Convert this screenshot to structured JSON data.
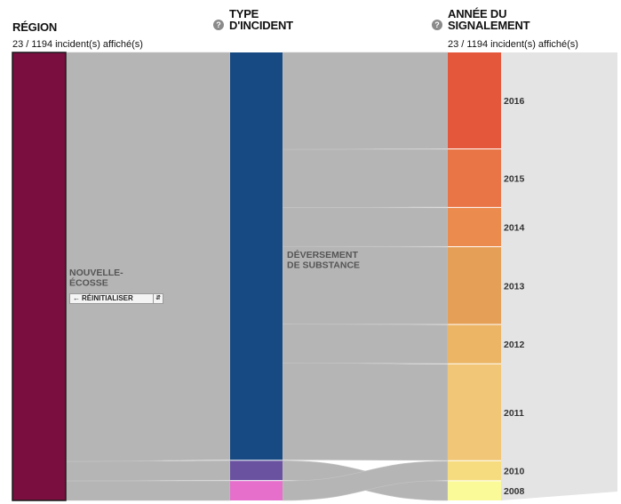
{
  "headers": {
    "region": "RÉGION",
    "type": "TYPE\nD'INCIDENT",
    "year": "ANNÉE DU\nSIGNALEMENT"
  },
  "counts": {
    "left": "23 / 1194 incident(s) affiché(s)",
    "right": "23 / 1194 incident(s) affiché(s)"
  },
  "help_icon": "question-circle-icon",
  "reset": {
    "label": "RÉINITIALISER",
    "arrow_icon": "back-arrow-icon",
    "toggle_icon": "up-down-icon"
  },
  "chart_data": {
    "type": "sankey",
    "total": 23,
    "columns": [
      {
        "key": "region",
        "nodes": [
          {
            "id": "ns",
            "label": "NOUVELLE-\nÉCOSSE",
            "value": 23,
            "color": "#7a0e3e"
          }
        ]
      },
      {
        "key": "type",
        "nodes": [
          {
            "id": "subst",
            "label": "DÉVERSEMENT\nDE SUBSTANCE",
            "value": 21,
            "color": "#174a82"
          },
          {
            "id": "t2",
            "label": "",
            "value": 1,
            "color": "#6a52a1"
          },
          {
            "id": "t3",
            "label": "",
            "value": 1,
            "color": "#e56fcb"
          }
        ]
      },
      {
        "key": "year",
        "nodes": [
          {
            "id": "y2016",
            "label": "2016",
            "value": 5,
            "color": "#e5573a"
          },
          {
            "id": "y2015",
            "label": "2015",
            "value": 3,
            "color": "#e97446"
          },
          {
            "id": "y2014",
            "label": "2014",
            "value": 2,
            "color": "#eb8c4e"
          },
          {
            "id": "y2013",
            "label": "2013",
            "value": 4,
            "color": "#e69f56"
          },
          {
            "id": "y2012",
            "label": "2012",
            "value": 2,
            "color": "#ebb565"
          },
          {
            "id": "y2011",
            "label": "2011",
            "value": 5,
            "color": "#f1c777"
          },
          {
            "id": "y2010",
            "label": "2010",
            "value": 1,
            "color": "#f7dc7f"
          },
          {
            "id": "y2008",
            "label": "2008",
            "value": 1,
            "color": "#fbfa98"
          }
        ]
      }
    ],
    "links": [
      {
        "source": "ns",
        "target": "subst",
        "value": 21
      },
      {
        "source": "ns",
        "target": "t2",
        "value": 1
      },
      {
        "source": "ns",
        "target": "t3",
        "value": 1
      },
      {
        "source": "subst",
        "target": "y2016",
        "value": 5
      },
      {
        "source": "subst",
        "target": "y2015",
        "value": 3
      },
      {
        "source": "subst",
        "target": "y2014",
        "value": 2
      },
      {
        "source": "subst",
        "target": "y2013",
        "value": 4
      },
      {
        "source": "subst",
        "target": "y2012",
        "value": 2
      },
      {
        "source": "subst",
        "target": "y2011",
        "value": 5
      },
      {
        "source": "t2",
        "target": "y2008",
        "value": 1
      },
      {
        "source": "t3",
        "target": "y2010",
        "value": 1
      }
    ]
  }
}
